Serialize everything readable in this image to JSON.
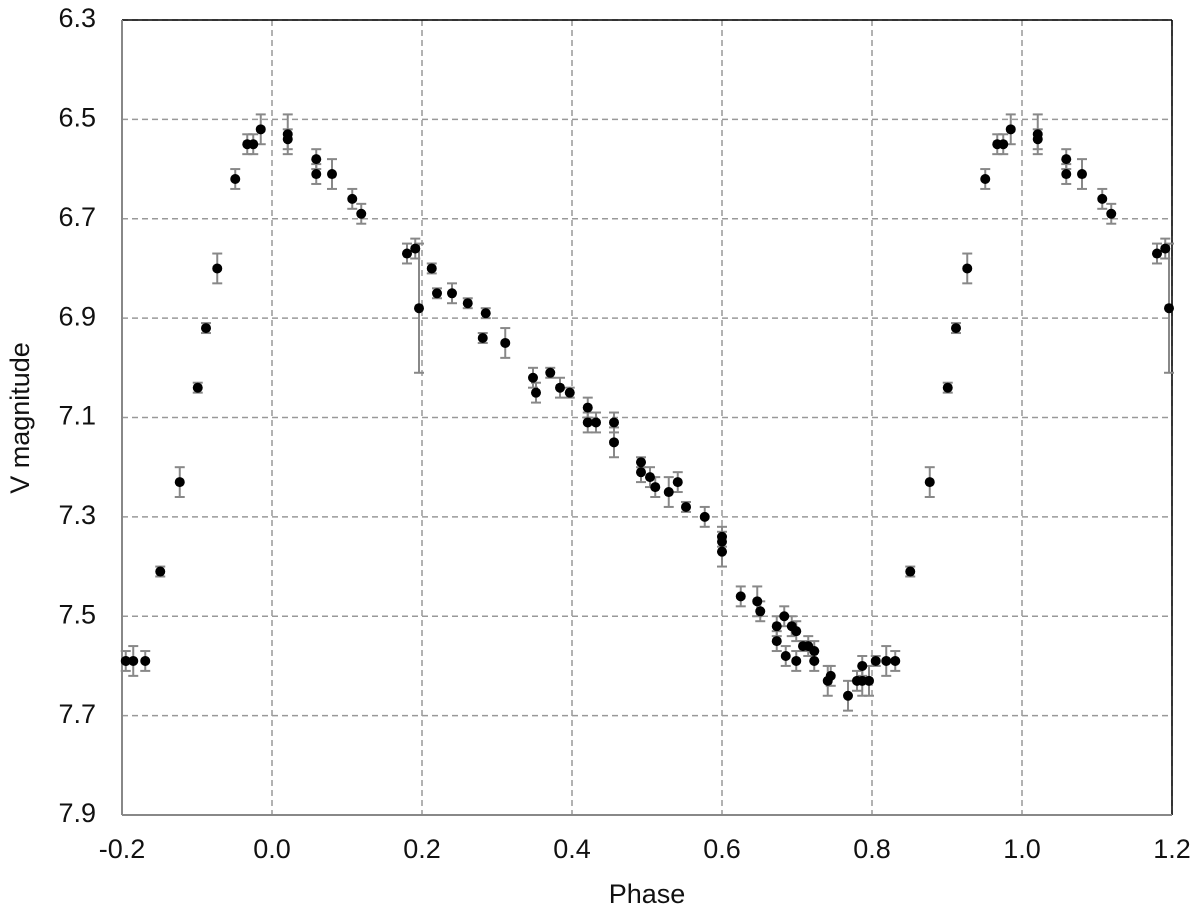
{
  "chart_data": {
    "type": "scatter",
    "x_label": "Phase",
    "y_label": "V magnitude",
    "xlim": [
      -0.2,
      1.2
    ],
    "xticks": [
      -0.2,
      {
        "value": 0,
        "label": "0.0"
      },
      0.2,
      0.4,
      0.6,
      0.8,
      {
        "value": 1,
        "label": "1.0"
      },
      1.2
    ],
    "ylim": [
      7.9,
      6.3
    ],
    "yticks": [
      7.9,
      7.7,
      7.5,
      7.3,
      7.1,
      6.9,
      6.7,
      6.5,
      6.3
    ],
    "grid": true,
    "series": [
      {
        "color": "#000000",
        "x": [
          -0.195,
          -0.185,
          -0.169,
          -0.149,
          -0.123,
          -0.099,
          -0.088,
          -0.073,
          -0.049,
          -0.033,
          -0.025,
          -0.015,
          0.021,
          0.021,
          0.059,
          0.059,
          0.08,
          0.107,
          0.119,
          0.18,
          0.191,
          0.196,
          0.213,
          0.22,
          0.24,
          0.261,
          0.281,
          0.285,
          0.311,
          0.348,
          0.352,
          0.371,
          0.384,
          0.397,
          0.421,
          0.421,
          0.432,
          0.456,
          0.456,
          0.492,
          0.492,
          0.504,
          0.511,
          0.529,
          0.541,
          0.552,
          0.577,
          0.6,
          0.6,
          0.6,
          0.625,
          0.647,
          0.651,
          0.673,
          0.673,
          0.683,
          0.685,
          0.693,
          0.699,
          0.699,
          0.708,
          0.715,
          0.723,
          0.723,
          0.741,
          0.745,
          0.768,
          0.78,
          0.787,
          0.787,
          0.796,
          0.805,
          0.819,
          0.831,
          0.851,
          0.877,
          0.901,
          0.912,
          0.927,
          0.951,
          0.967,
          0.975,
          0.985,
          1.021,
          1.021,
          1.059,
          1.059,
          1.08,
          1.107,
          1.119,
          1.18,
          1.191,
          1.196
        ],
        "values": [
          7.59,
          7.59,
          7.59,
          7.41,
          7.23,
          7.04,
          6.92,
          6.8,
          6.62,
          6.55,
          6.55,
          6.52,
          6.53,
          6.54,
          6.58,
          6.61,
          6.61,
          6.66,
          6.69,
          6.77,
          6.76,
          6.88,
          6.8,
          6.85,
          6.85,
          6.87,
          6.94,
          6.89,
          6.95,
          7.02,
          7.05,
          7.01,
          7.04,
          7.05,
          7.08,
          7.11,
          7.11,
          7.11,
          7.15,
          7.19,
          7.21,
          7.22,
          7.24,
          7.25,
          7.23,
          7.28,
          7.3,
          7.34,
          7.35,
          7.37,
          7.46,
          7.47,
          7.49,
          7.52,
          7.55,
          7.5,
          7.58,
          7.52,
          7.53,
          7.59,
          7.56,
          7.56,
          7.57,
          7.59,
          7.63,
          7.62,
          7.66,
          7.63,
          7.6,
          7.63,
          7.63,
          7.59,
          7.59,
          7.59,
          7.41,
          7.23,
          7.04,
          6.92,
          6.8,
          6.62,
          6.55,
          6.55,
          6.52,
          6.53,
          6.54,
          6.58,
          6.61,
          6.61,
          6.66,
          6.69,
          6.77,
          6.76,
          6.88
        ],
        "errors": [
          0.02,
          0.03,
          0.02,
          0.01,
          0.03,
          0.01,
          0.01,
          0.03,
          0.02,
          0.02,
          0.02,
          0.03,
          0.04,
          0.02,
          0.02,
          0.02,
          0.03,
          0.02,
          0.02,
          0.02,
          0.02,
          0.13,
          0.01,
          0.01,
          0.02,
          0.01,
          0.01,
          0.01,
          0.03,
          0.02,
          0.02,
          0.01,
          0.02,
          0.01,
          0.02,
          0.02,
          0.02,
          0.02,
          0.03,
          0.01,
          0.02,
          0.02,
          0.02,
          0.03,
          0.02,
          0.01,
          0.02,
          0.02,
          0.02,
          0.03,
          0.02,
          0.03,
          0.02,
          0.02,
          0.02,
          0.02,
          0.02,
          0.02,
          0.02,
          0.02,
          0.01,
          0.02,
          0.02,
          0.02,
          0.03,
          0.02,
          0.03,
          0.02,
          0.02,
          0.03,
          0.03,
          0.01,
          0.03,
          0.02,
          0.01,
          0.03,
          0.01,
          0.01,
          0.03,
          0.02,
          0.02,
          0.02,
          0.03,
          0.04,
          0.02,
          0.02,
          0.02,
          0.03,
          0.02,
          0.02,
          0.02,
          0.02,
          0.13
        ]
      }
    ]
  }
}
